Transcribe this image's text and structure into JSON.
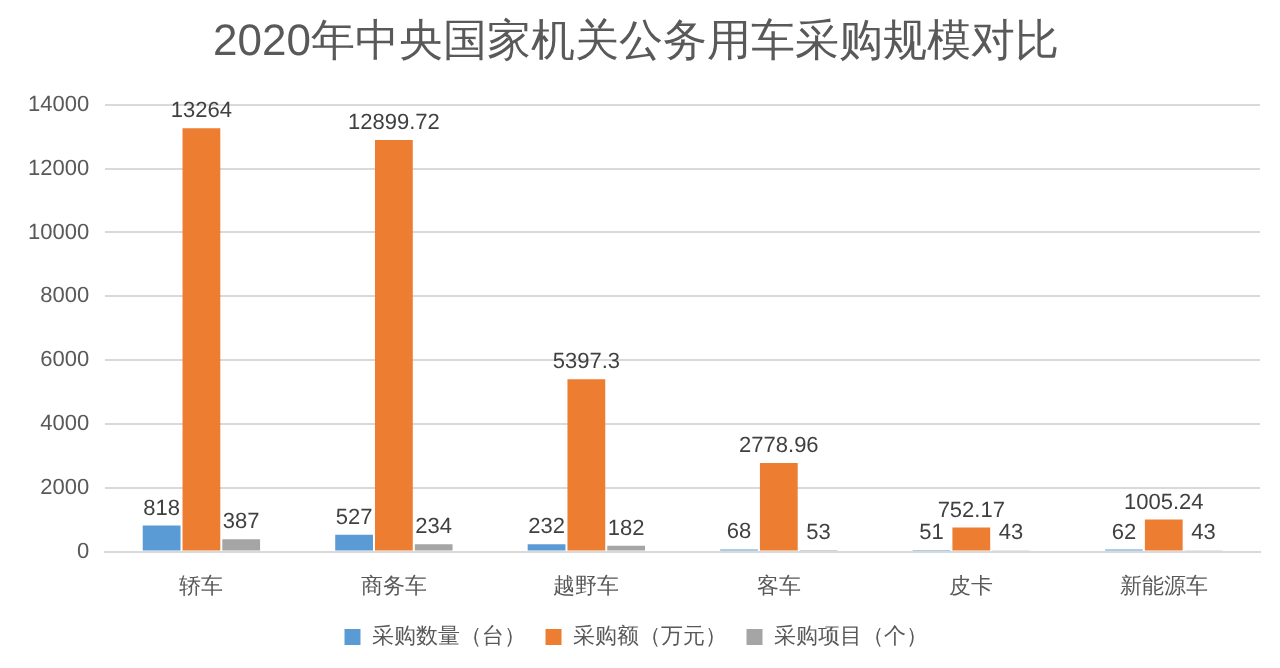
{
  "chart_data": {
    "type": "bar",
    "title": "2020年中央国家机关公务用车采购规模对比",
    "categories": [
      "轿车",
      "商务车",
      "越野车",
      "客车",
      "皮卡",
      "新能源车"
    ],
    "series": [
      {
        "name": "采购数量（台）",
        "color": "#5b9bd5",
        "values": [
          818,
          527,
          232,
          68,
          51,
          62
        ]
      },
      {
        "name": "采购额（万元）",
        "color": "#ed7d31",
        "values": [
          13264,
          12899.72,
          5397.3,
          2778.96,
          752.17,
          1005.24
        ]
      },
      {
        "name": "采购项目（个）",
        "color": "#a5a5a5",
        "values": [
          387,
          234,
          182,
          53,
          43,
          43
        ]
      }
    ],
    "ylim": [
      0,
      14000
    ],
    "yticks": [
      0,
      2000,
      4000,
      6000,
      8000,
      10000,
      12000,
      14000
    ],
    "grid": "y",
    "legend": "bottom",
    "data_labels": true
  }
}
